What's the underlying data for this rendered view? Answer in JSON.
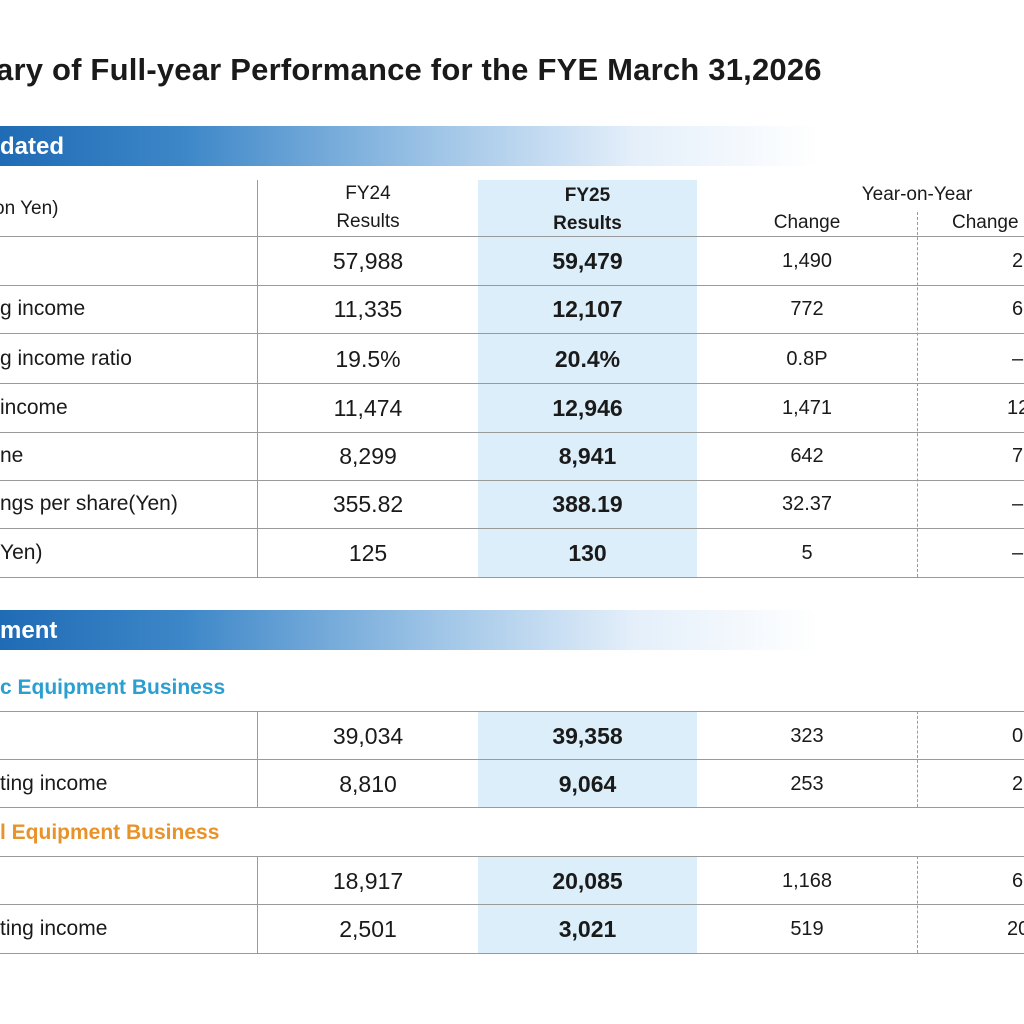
{
  "title": "ary of Full-year Performance for the FYE March 31,2026",
  "sections": {
    "consolidated": "dated",
    "segment": "ment"
  },
  "header": {
    "unit": "on Yen)",
    "fy24_line1": "FY24",
    "fy24_line2": "Results",
    "fy25_line1": "FY25",
    "fy25_line2": "Results",
    "yoy": "Year-on-Year",
    "change": "Change",
    "change_pct": "Change"
  },
  "consolidated_rows": [
    {
      "label": "",
      "fy24": "57,988",
      "fy25": "59,479",
      "change": "1,490",
      "change_pct": "2"
    },
    {
      "label": "g income",
      "fy24": "11,335",
      "fy25": "12,107",
      "change": "772",
      "change_pct": "6"
    },
    {
      "label": "g income ratio",
      "fy24": "19.5%",
      "fy25": "20.4%",
      "change": "0.8P",
      "change_pct": "–"
    },
    {
      "label": "income",
      "fy24": "11,474",
      "fy25": "12,946",
      "change": "1,471",
      "change_pct": "12"
    },
    {
      "label": "ne",
      "fy24": "8,299",
      "fy25": "8,941",
      "change": "642",
      "change_pct": "7"
    },
    {
      "label": "ngs per share(Yen)",
      "fy24": "355.82",
      "fy25": "388.19",
      "change": "32.37",
      "change_pct": "–"
    },
    {
      "label": "Yen)",
      "fy24": "125",
      "fy25": "130",
      "change": "5",
      "change_pct": "–"
    }
  ],
  "segments": [
    {
      "name": "c Equipment Business",
      "color": "#2a9fd0",
      "rows": [
        {
          "label": "",
          "fy24": "39,034",
          "fy25": "39,358",
          "change": "323",
          "change_pct": "0"
        },
        {
          "label": "ting income",
          "fy24": "8,810",
          "fy25": "9,064",
          "change": "253",
          "change_pct": "2"
        }
      ]
    },
    {
      "name": "l Equipment Business",
      "color": "#e8922a",
      "rows": [
        {
          "label": "",
          "fy24": "18,917",
          "fy25": "20,085",
          "change": "1,168",
          "change_pct": "6"
        },
        {
          "label": "ting income",
          "fy24": "2,501",
          "fy25": "3,021",
          "change": "519",
          "change_pct": "20"
        }
      ]
    }
  ]
}
